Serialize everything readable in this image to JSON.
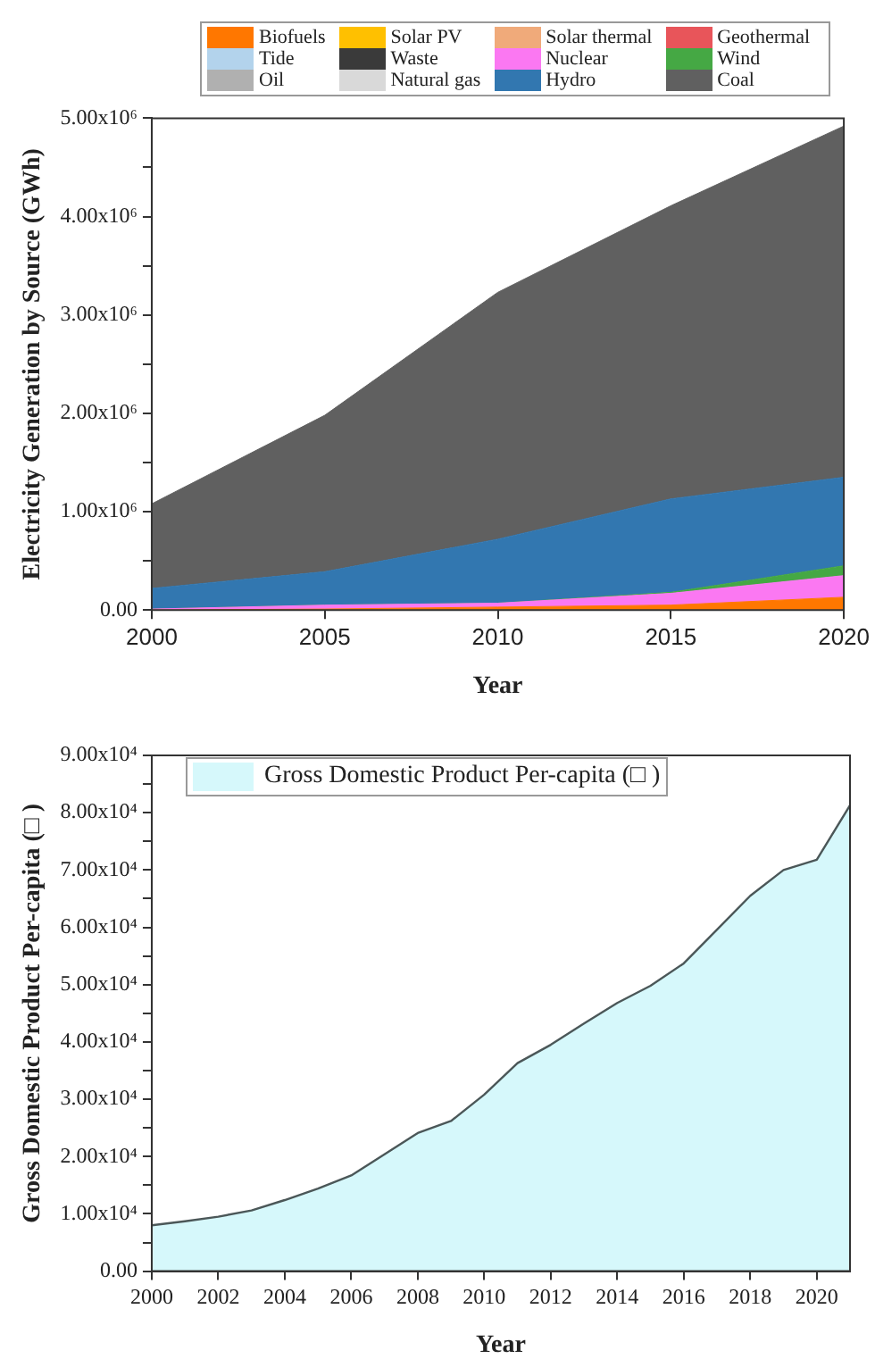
{
  "chart_data": [
    {
      "type": "area",
      "stacked": true,
      "xlabel": "Year",
      "ylabel": "Electricity Generation by Source (GWh)",
      "x": [
        2000,
        2005,
        2010,
        2015,
        2020
      ],
      "xlim": [
        2000,
        2020
      ],
      "xticks": [
        2000,
        2005,
        2010,
        2015,
        2020
      ],
      "ylim": [
        0,
        5000000
      ],
      "yticks": [
        {
          "value": 0,
          "label": "0.00"
        },
        {
          "value": 500000,
          "label": null
        },
        {
          "value": 1000000,
          "label": "1.00x10⁶"
        },
        {
          "value": 1500000,
          "label": null
        },
        {
          "value": 2000000,
          "label": "2.00x10⁶"
        },
        {
          "value": 2500000,
          "label": null
        },
        {
          "value": 3000000,
          "label": "3.00x10⁶"
        },
        {
          "value": 3500000,
          "label": null
        },
        {
          "value": 4000000,
          "label": "4.00x10⁶"
        },
        {
          "value": 4500000,
          "label": null
        },
        {
          "value": 5000000,
          "label": "5.00x10⁶"
        }
      ],
      "grid": false,
      "legend": "top",
      "marker": "none",
      "series": [
        {
          "name": "Biofuels",
          "color": "#ff7700",
          "values": [
            0,
            10000,
            30000,
            50000,
            130000
          ]
        },
        {
          "name": "Solar PV",
          "color": "#ffc000",
          "values": [
            null,
            null,
            null,
            null,
            null
          ]
        },
        {
          "name": "Solar thermal",
          "color": "#f0aa7a",
          "values": [
            null,
            null,
            null,
            null,
            null
          ]
        },
        {
          "name": "Geothermal",
          "color": "#e8555a",
          "values": [
            null,
            null,
            null,
            null,
            null
          ]
        },
        {
          "name": "Tide",
          "color": "#b3d3ec",
          "values": [
            null,
            null,
            null,
            null,
            null
          ]
        },
        {
          "name": "Waste",
          "color": "#3a3a3a",
          "values": [
            null,
            null,
            null,
            null,
            null
          ]
        },
        {
          "name": "Nuclear",
          "color": "#fb78f2",
          "values": [
            10000,
            40000,
            40000,
            120000,
            220000
          ]
        },
        {
          "name": "Wind",
          "color": "#45a844",
          "values": [
            0,
            0,
            0,
            10000,
            100000
          ]
        },
        {
          "name": "Oil",
          "color": "#b0b0b0",
          "values": [
            null,
            null,
            null,
            null,
            null
          ]
        },
        {
          "name": "Natural gas",
          "color": "#d9d9d9",
          "values": [
            null,
            null,
            null,
            null,
            null
          ]
        },
        {
          "name": "Hydro",
          "color": "#3277b0",
          "values": [
            210000,
            340000,
            650000,
            950000,
            900000
          ]
        },
        {
          "name": "Coal",
          "color": "#606060",
          "values": [
            860000,
            1590000,
            2510000,
            2980000,
            3570000
          ]
        }
      ]
    },
    {
      "type": "area",
      "xlabel": "Year",
      "ylabel": "Gross Domestic Product Per-capita (□ )",
      "x": [
        2000,
        2001,
        2002,
        2003,
        2004,
        2005,
        2006,
        2007,
        2008,
        2009,
        2010,
        2011,
        2012,
        2013,
        2014,
        2015,
        2016,
        2017,
        2018,
        2019,
        2020,
        2021
      ],
      "xlim": [
        2000,
        2021
      ],
      "xticks": [
        2000,
        2002,
        2004,
        2006,
        2008,
        2010,
        2012,
        2014,
        2016,
        2018,
        2020
      ],
      "ylim": [
        0,
        90000
      ],
      "yticks": [
        {
          "value": 0,
          "label": "0.00"
        },
        {
          "value": 5000,
          "label": null
        },
        {
          "value": 10000,
          "label": "1.00x10⁴"
        },
        {
          "value": 15000,
          "label": null
        },
        {
          "value": 20000,
          "label": "2.00x10⁴"
        },
        {
          "value": 25000,
          "label": null
        },
        {
          "value": 30000,
          "label": "3.00x10⁴"
        },
        {
          "value": 35000,
          "label": null
        },
        {
          "value": 40000,
          "label": "4.00x10⁴"
        },
        {
          "value": 45000,
          "label": null
        },
        {
          "value": 50000,
          "label": "5.00x10⁴"
        },
        {
          "value": 55000,
          "label": null
        },
        {
          "value": 60000,
          "label": "6.00x10⁴"
        },
        {
          "value": 65000,
          "label": null
        },
        {
          "value": 70000,
          "label": "7.00x10⁴"
        },
        {
          "value": 75000,
          "label": null
        },
        {
          "value": 80000,
          "label": "8.00x10⁴"
        },
        {
          "value": 85000,
          "label": null
        },
        {
          "value": 90000,
          "label": "9.00x10⁴"
        }
      ],
      "grid": false,
      "legend": "top left",
      "marker": "none",
      "series": [
        {
          "name": "Gross Domestic Product Per-capita (□ )",
          "color": "#d6f8fb",
          "values": [
            8000,
            8700,
            9500,
            10600,
            12400,
            14400,
            16700,
            20400,
            24100,
            26200,
            30800,
            36300,
            39500,
            43200,
            46800,
            49800,
            53700,
            59600,
            65500,
            70000,
            71800,
            81300
          ]
        }
      ]
    }
  ]
}
